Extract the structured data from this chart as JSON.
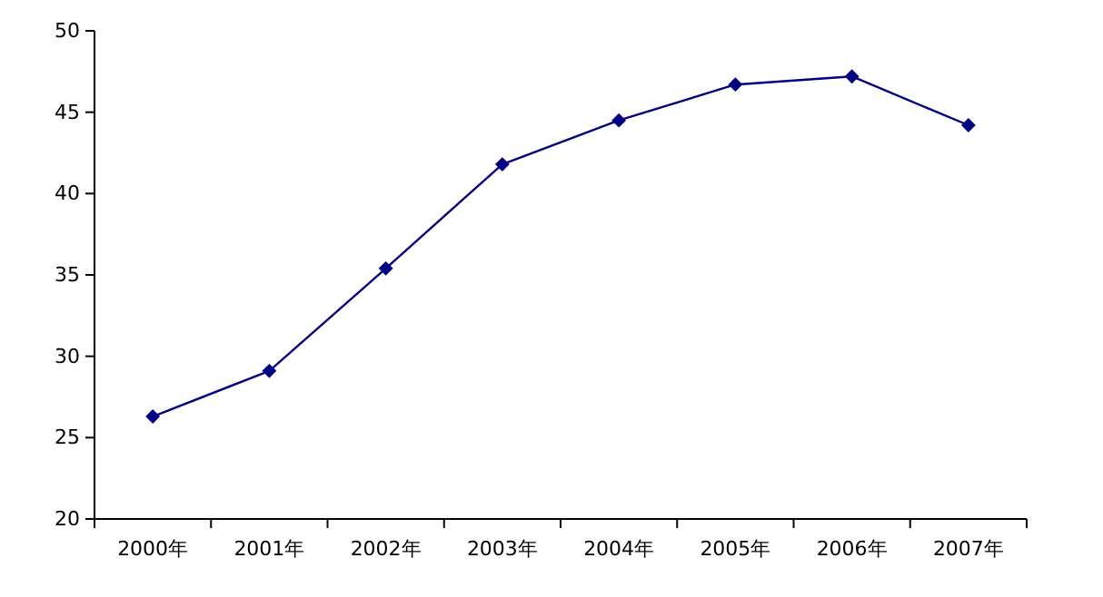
{
  "chart_data": {
    "type": "line",
    "categories": [
      "2000年",
      "2001年",
      "2002年",
      "2003年",
      "2004年",
      "2005年",
      "2006年",
      "2007年"
    ],
    "series": [
      {
        "color": "#000080",
        "values": [
          26.3,
          29.1,
          35.4,
          41.8,
          44.5,
          46.7,
          47.2,
          44.2
        ]
      }
    ],
    "ylim": [
      20,
      50
    ],
    "yticks": [
      20,
      25,
      30,
      35,
      40,
      45,
      50
    ],
    "grid": false,
    "marker": "diamond",
    "line_style": "solid"
  }
}
